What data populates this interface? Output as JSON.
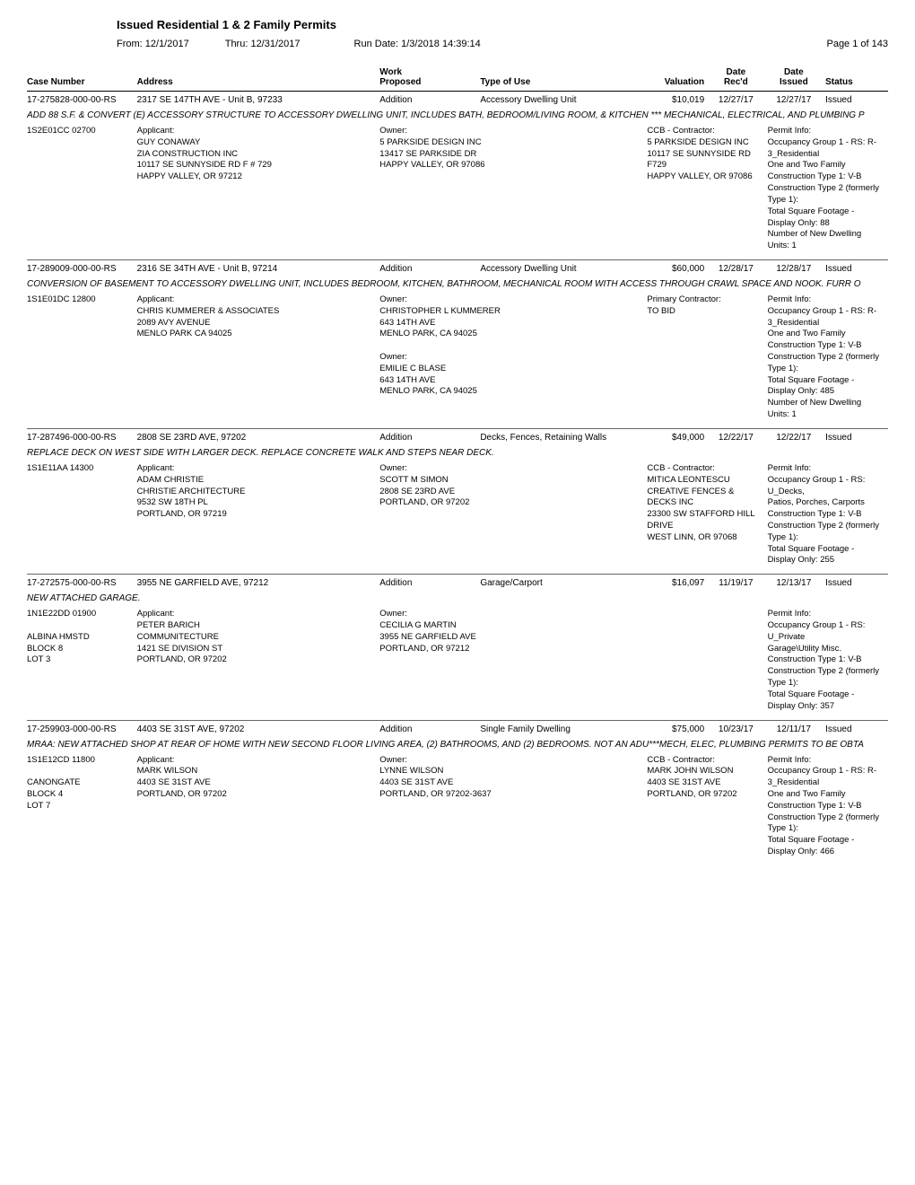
{
  "header": {
    "title": "Issued Residential 1 & 2 Family Permits",
    "from": "From: 12/1/2017",
    "thru": "Thru: 12/31/2017",
    "run": "Run Date: 1/3/2018 14:39:14",
    "page": "Page 1 of 143"
  },
  "columns": {
    "case": "Case Number",
    "addr": "Address",
    "work1": "Work",
    "work2": "Proposed",
    "type": "Type of Use",
    "val": "Valuation",
    "recd1": "Date",
    "recd2": "Rec'd",
    "issued1": "Date",
    "issued2": "Issued",
    "status": "Status"
  },
  "permits": [
    {
      "case": "17-275828-000-00-RS",
      "address": "2317 SE 147TH AVE - Unit B, 97233",
      "work": "Addition",
      "type": "Accessory Dwelling Unit",
      "valuation": "$10,019",
      "recd": "12/27/17",
      "issued": "12/27/17",
      "status": "Issued",
      "desc": "ADD 88 S.F. & CONVERT (E) ACCESSORY STRUCTURE TO ACCESSORY DWELLING UNIT, INCLUDES BATH, BEDROOM/LIVING ROOM, & KITCHEN *** MECHANICAL, ELECTRICAL, AND PLUMBING P",
      "parcel": "1S2E01CC 02700",
      "applicant": "Applicant:\nGUY CONAWAY\nZIA CONSTRUCTION INC\n10117 SE SUNNYSIDE RD F # 729\nHAPPY VALLEY, OR 97212",
      "owner": "Owner:\n5 PARKSIDE DESIGN INC\n13417 SE PARKSIDE DR\nHAPPY VALLEY, OR 97086",
      "contractor": "CCB - Contractor:\n5 PARKSIDE DESIGN INC\n10117 SE SUNNYSIDE RD F729\nHAPPY VALLEY, OR 97086",
      "permit": "Permit Info:\nOccupancy Group 1 - RS: R-3_Residential\nOne and Two Family\nConstruction Type 1: V-B\nConstruction Type 2 (formerly Type 1):\nTotal Square Footage - Display Only: 88\nNumber of New Dwelling Units: 1"
    },
    {
      "case": "17-289009-000-00-RS",
      "address": "2316 SE 34TH AVE - Unit B, 97214",
      "work": "Addition",
      "type": "Accessory Dwelling Unit",
      "valuation": "$60,000",
      "recd": "12/28/17",
      "issued": "12/28/17",
      "status": "Issued",
      "desc": "CONVERSION OF BASEMENT TO ACCESSORY DWELLING UNIT, INCLUDES BEDROOM, KITCHEN, BATHROOM, MECHANICAL ROOM WITH ACCESS THROUGH CRAWL SPACE AND NOOK.  FURR O",
      "parcel": "1S1E01DC 12800",
      "applicant": "Applicant:\nCHRIS KUMMERER & ASSOCIATES\n2089 AVY AVENUE\nMENLO PARK CA 94025",
      "owner": "Owner:\nCHRISTOPHER L KUMMERER\n643 14TH AVE\nMENLO PARK, CA 94025\n\nOwner:\nEMILIE C BLASE\n643 14TH AVE\nMENLO PARK, CA 94025",
      "contractor": "Primary Contractor:\nTO BID",
      "permit": "Permit Info:\nOccupancy Group 1 - RS: R-3_Residential\nOne and Two Family\nConstruction Type 1: V-B\nConstruction Type 2 (formerly Type 1):\nTotal Square Footage - Display Only: 485\nNumber of New Dwelling Units: 1"
    },
    {
      "case": "17-287496-000-00-RS",
      "address": "2808 SE 23RD AVE, 97202",
      "work": "Addition",
      "type": "Decks, Fences, Retaining Walls",
      "valuation": "$49,000",
      "recd": "12/22/17",
      "issued": "12/22/17",
      "status": "Issued",
      "desc": "REPLACE DECK ON WEST SIDE WITH LARGER DECK. REPLACE CONCRETE WALK AND STEPS NEAR DECK.",
      "parcel": "1S1E11AA 14300",
      "applicant": "Applicant:\nADAM CHRISTIE\nCHRISTIE ARCHITECTURE\n9532 SW 18TH PL\nPORTLAND, OR 97219",
      "owner": "Owner:\nSCOTT M SIMON\n2808 SE 23RD AVE\nPORTLAND, OR 97202",
      "contractor": "CCB - Contractor:\nMITICA LEONTESCU\nCREATIVE FENCES & DECKS INC\n23300 SW STAFFORD HILL DRIVE\nWEST LINN, OR 97068",
      "permit": "Permit Info:\nOccupancy Group 1 - RS: U_Decks,\nPatios, Porches, Carports\nConstruction Type 1: V-B\nConstruction Type 2 (formerly Type 1):\nTotal Square Footage - Display Only: 255"
    },
    {
      "case": "17-272575-000-00-RS",
      "address": "3955 NE GARFIELD AVE, 97212",
      "work": "Addition",
      "type": "Garage/Carport",
      "valuation": "$16,097",
      "recd": "11/19/17",
      "issued": "12/13/17",
      "status": "Issued",
      "desc": "NEW ATTACHED GARAGE.",
      "parcel": "1N1E22DD 01900\n\nALBINA HMSTD\nBLOCK 8\nLOT 3",
      "applicant": "Applicant:\nPETER BARICH\nCOMMUNITECTURE\n1421 SE DIVISION ST\nPORTLAND, OR 97202",
      "owner": "Owner:\nCECILIA G MARTIN\n3955 NE GARFIELD AVE\nPORTLAND, OR 97212",
      "contractor": "",
      "permit": "Permit Info:\nOccupancy Group 1 - RS: U_Private\nGarage\\Utility Misc.\nConstruction Type 1: V-B\nConstruction Type 2 (formerly Type 1):\nTotal Square Footage - Display Only: 357"
    },
    {
      "case": "17-259903-000-00-RS",
      "address": "4403 SE 31ST AVE, 97202",
      "work": "Addition",
      "type": "Single Family Dwelling",
      "valuation": "$75,000",
      "recd": "10/23/17",
      "issued": "12/11/17",
      "status": "Issued",
      "desc": "MRAA: NEW ATTACHED SHOP AT REAR OF HOME WITH NEW SECOND FLOOR LIVING AREA, (2) BATHROOMS, AND (2) BEDROOMS.  NOT AN ADU***MECH, ELEC, PLUMBING PERMITS TO BE OBTA",
      "parcel": "1S1E12CD 11800\n\nCANONGATE\nBLOCK 4\nLOT 7",
      "applicant": "Applicant:\nMARK WILSON\n4403 SE 31ST AVE\nPORTLAND, OR  97202",
      "owner": "Owner:\nLYNNE WILSON\n4403 SE 31ST AVE\nPORTLAND, OR 97202-3637",
      "contractor": "CCB - Contractor:\nMARK JOHN WILSON\n4403 SE 31ST AVE\nPORTLAND, OR 97202",
      "permit": "Permit Info:\nOccupancy Group 1 - RS: R-3_Residential\nOne and Two Family\nConstruction Type 1: V-B\nConstruction Type 2 (formerly Type 1):\nTotal Square Footage - Display Only: 466"
    }
  ]
}
